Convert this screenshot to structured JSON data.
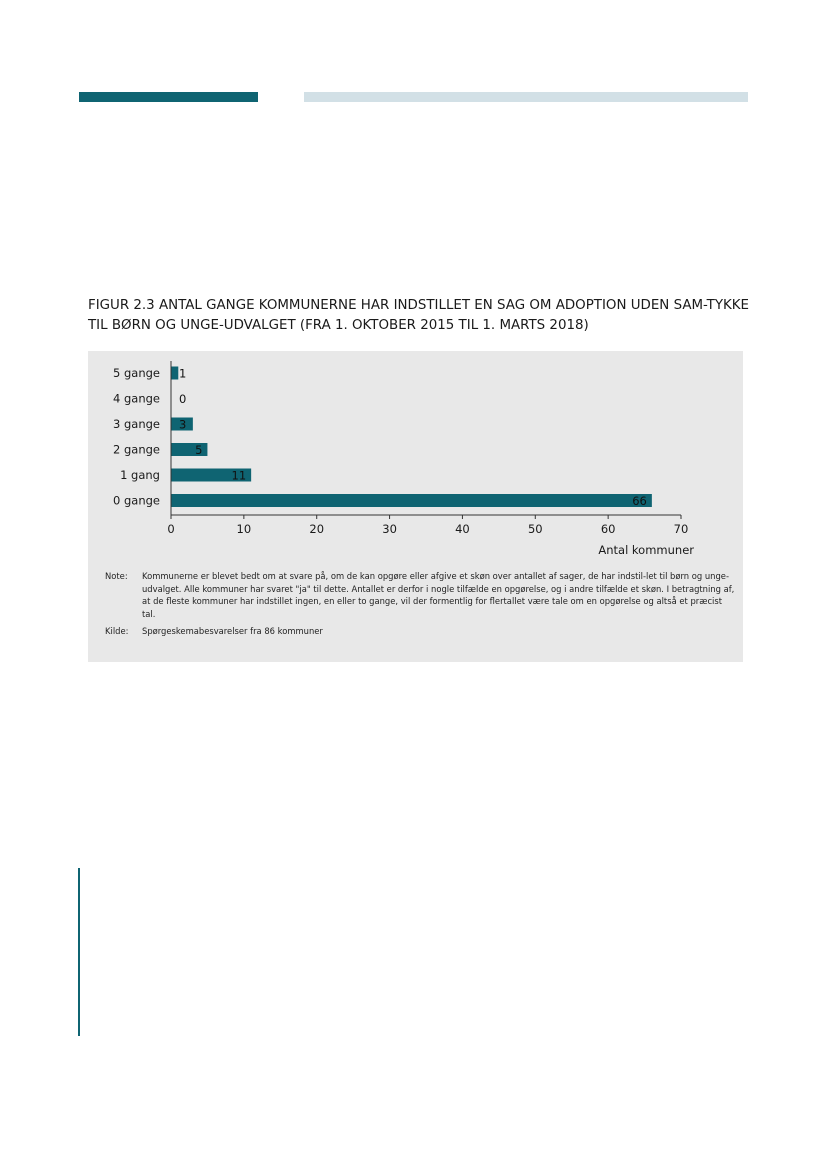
{
  "figure": {
    "title": "FIGUR 2.3 ANTAL GANGE KOMMUNERNE HAR INDSTILLET EN SAG OM ADOPTION UDEN SAM-TYKKE TIL BØRN OG UNGE-UDVALGET (FRA 1. OKTOBER 2015 TIL 1. MARTS 2018)"
  },
  "chart_data": {
    "type": "bar",
    "orientation": "horizontal",
    "categories": [
      "5 gange",
      "4 gange",
      "3 gange",
      "2 gange",
      "1 gang",
      "0 gange"
    ],
    "values": [
      1,
      0,
      3,
      5,
      11,
      66
    ],
    "xlabel": "Antal kommuner",
    "ylabel": "",
    "xlim": [
      0,
      70
    ],
    "xticks": [
      0,
      10,
      20,
      30,
      40,
      50,
      60,
      70
    ],
    "grid": false,
    "bar_color": "#0f6472"
  },
  "notes": {
    "note_label": "Note:",
    "note_text": "Kommunerne er blevet bedt om at svare på, om de kan opgøre eller afgive et skøn over antallet af sager, de har indstil-let til børn og unge-udvalget. Alle kommuner har svaret \"ja\" til dette. Antallet er derfor i nogle tilfælde en opgørelse, og i andre tilfælde et skøn. I betragtning af, at de fleste kommuner har indstillet ingen, en eller to gange, vil der formentlig for flertallet være tale om en opgørelse og altså et præcist tal.",
    "source_label": "Kilde:",
    "source_text": "Spørgeskemabesvarelser fra 86 kommuner"
  },
  "colors": {
    "accent": "#0f6472",
    "accent_light": "#d2e0e6",
    "panel_bg": "#e8e8e8"
  }
}
